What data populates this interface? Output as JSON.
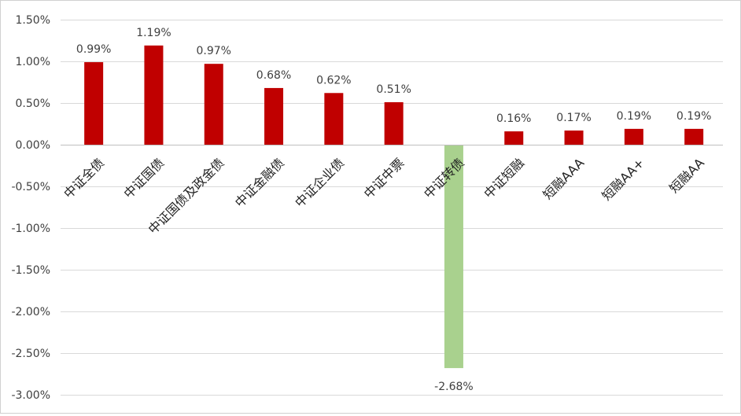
{
  "chart_data": {
    "type": "bar",
    "categories": [
      "中证全债",
      "中证国债",
      "中证国债及政金债",
      "中证金融债",
      "中证企业债",
      "中证中票",
      "中证转债",
      "中证短融",
      "短融AAA",
      "短融AA+",
      "短融AA"
    ],
    "values": [
      0.99,
      1.19,
      0.97,
      0.68,
      0.62,
      0.51,
      -2.68,
      0.16,
      0.17,
      0.19,
      0.19
    ],
    "data_labels": [
      "0.99%",
      "1.19%",
      "0.97%",
      "0.68%",
      "0.62%",
      "0.51%",
      "-2.68%",
      "0.16%",
      "0.17%",
      "0.19%",
      "0.19%"
    ],
    "bar_colors": [
      "#C00000",
      "#C00000",
      "#C00000",
      "#C00000",
      "#C00000",
      "#C00000",
      "#A9D18E",
      "#C00000",
      "#C00000",
      "#C00000",
      "#C00000"
    ],
    "title": "",
    "xlabel": "",
    "ylabel": "",
    "ylim": [
      -3.0,
      1.5
    ],
    "yticks": [
      1.5,
      1.0,
      0.5,
      0.0,
      -0.5,
      -1.0,
      -1.5,
      -2.0,
      -2.5,
      -3.0
    ],
    "ytick_labels": [
      "1.50%",
      "1.00%",
      "0.50%",
      "0.00%",
      "-0.50%",
      "-1.00%",
      "-1.50%",
      "-2.00%",
      "-2.50%",
      "-3.00%"
    ],
    "grid": true,
    "legend": "none",
    "colors": {
      "positive": "#C00000",
      "negative": "#A9D18E",
      "grid": "#D9D9D9",
      "text": "#404040"
    }
  }
}
